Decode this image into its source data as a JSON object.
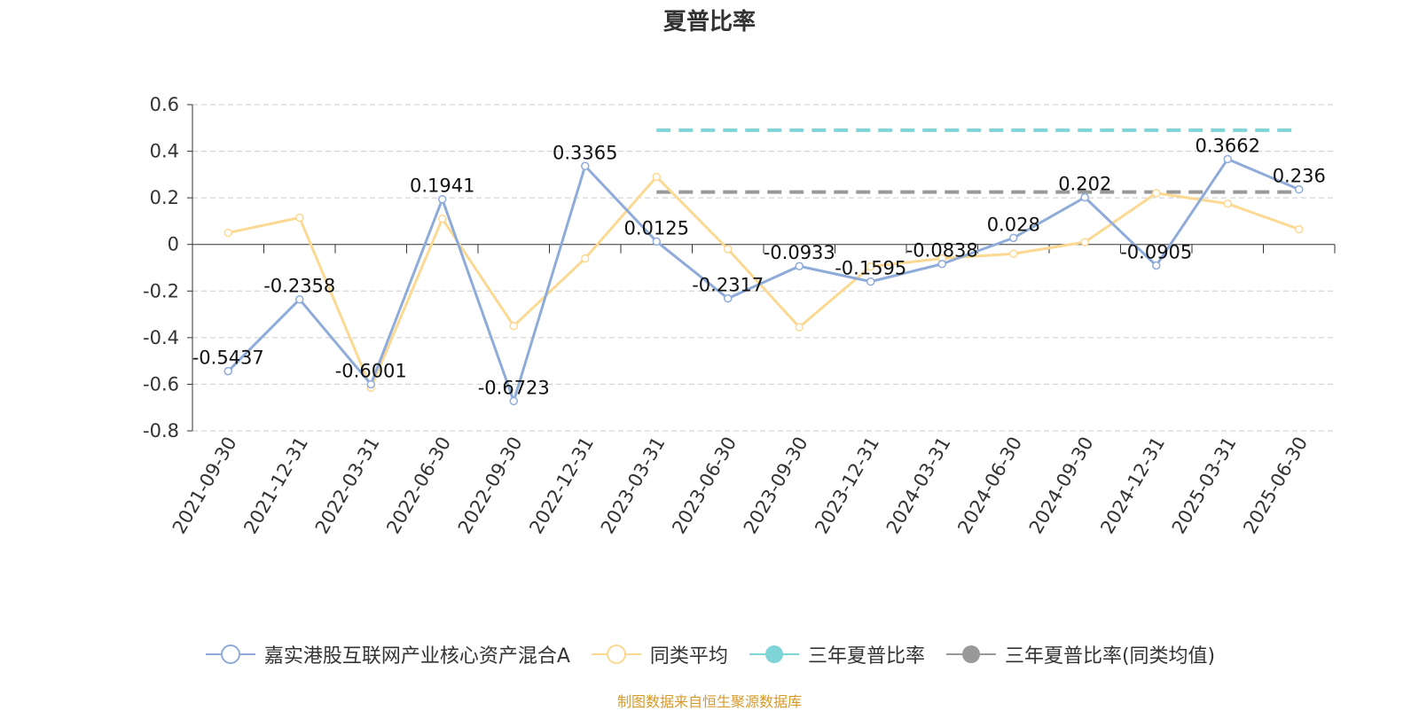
{
  "title": "夏普比率",
  "source": "制图数据来自恒生聚源数据库",
  "colors": {
    "fund": "#8eabd9",
    "avg": "#fcd993",
    "three_year": "#7fd4d8",
    "three_year_avg": "#999999",
    "axis": "#333333",
    "grid": "#cccccc",
    "source": "#d69a2b"
  },
  "legend": [
    {
      "label": "嘉实港股互联网产业核心资产混合A",
      "color": "#8eabd9",
      "icon": "hollow-circle-line-icon"
    },
    {
      "label": "同类平均",
      "color": "#fcd993",
      "icon": "hollow-circle-line-icon"
    },
    {
      "label": "三年夏普比率",
      "color": "#7fd4d8",
      "icon": "filled-circle-line-icon"
    },
    {
      "label": "三年夏普比率(同类均值)",
      "color": "#999999",
      "icon": "filled-circle-line-icon"
    }
  ],
  "chart_data": {
    "type": "line",
    "title": "夏普比率",
    "xlabel": "",
    "ylabel": "",
    "ylim": [
      -0.8,
      0.6
    ],
    "yticks": [
      0.6,
      0.4,
      0.2,
      0,
      -0.2,
      -0.4,
      -0.6,
      -0.8
    ],
    "ytick_labels": [
      "0.6",
      "0.4",
      "0.2",
      "0",
      "-0.2",
      "-0.4",
      "-0.6",
      "-0.8"
    ],
    "grid": true,
    "legend_position": "bottom",
    "categories": [
      "2021-09-30",
      "2021-12-31",
      "2022-03-31",
      "2022-06-30",
      "2022-09-30",
      "2022-12-31",
      "2023-03-31",
      "2023-06-30",
      "2023-09-30",
      "2023-12-31",
      "2024-03-31",
      "2024-06-30",
      "2024-09-30",
      "2024-12-31",
      "2025-03-31",
      "2025-06-30"
    ],
    "series": [
      {
        "name": "嘉实港股互联网产业核心资产混合A",
        "values": [
          -0.5437,
          -0.2358,
          -0.6001,
          0.1941,
          -0.6723,
          0.3365,
          0.0125,
          -0.2317,
          -0.0933,
          -0.1595,
          -0.0838,
          0.028,
          0.202,
          -0.0905,
          0.3662,
          0.236
        ],
        "data_labels": [
          "-0.5437",
          "-0.2358",
          "-0.6001",
          "0.1941",
          "-0.6723",
          "0.3365",
          "0.0125",
          "-0.2317",
          "-0.0933",
          "-0.1595",
          "-0.0838",
          "0.028",
          "0.202",
          "-0.0905",
          "0.3662",
          "0.236"
        ]
      },
      {
        "name": "同类平均",
        "values": [
          0.05,
          0.115,
          -0.615,
          0.11,
          -0.35,
          -0.06,
          0.29,
          -0.02,
          -0.355,
          -0.095,
          -0.06,
          -0.04,
          0.01,
          0.22,
          0.175,
          0.065
        ]
      },
      {
        "name": "三年夏普比率",
        "style": "dashed",
        "from": "2023-03-31",
        "to": "2025-06-30",
        "value": 0.49
      },
      {
        "name": "三年夏普比率(同类均值)",
        "style": "dashed",
        "from": "2023-03-31",
        "to": "2025-06-30",
        "value": 0.225
      }
    ]
  }
}
